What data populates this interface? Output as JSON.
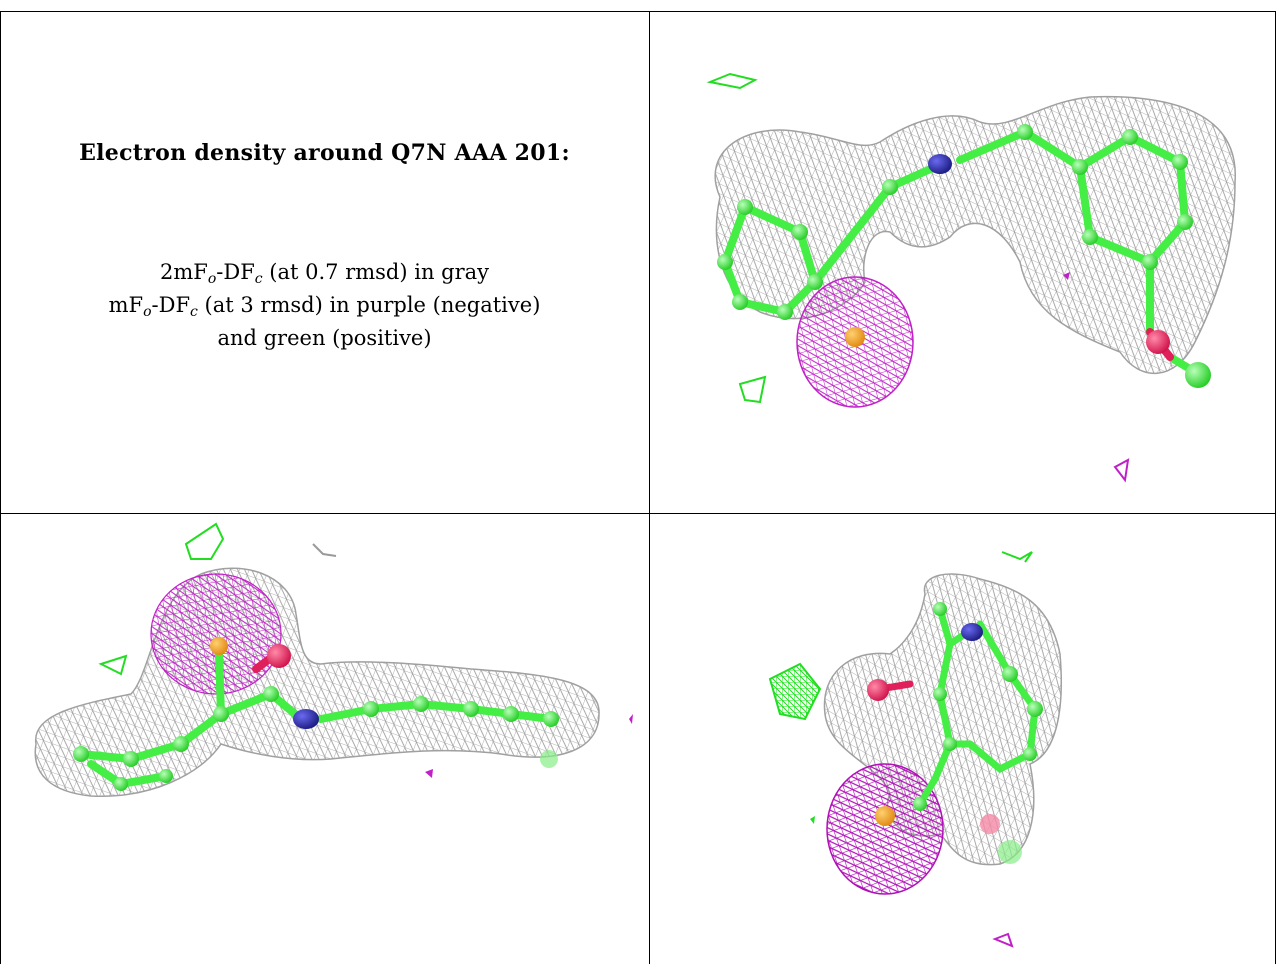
{
  "title": "Electron density around Q7N AAA 201:",
  "legend": {
    "line1_prefix": "2mF",
    "line1_sub_o": "o",
    "line1_mid": "-DF",
    "line1_sub_c": "c",
    "line1_rest": " (at 0.7 rmsd) in gray",
    "line2_prefix": "mF",
    "line2_sub_o": "o",
    "line2_mid": "-DF",
    "line2_sub_c": "c",
    "line2_rest": " (at 3 rmsd) in purple (negative)",
    "line3": "and green (positive)"
  },
  "colors": {
    "mesh_gray": "#9a9a9a",
    "mesh_purple": "#c020c8",
    "mesh_green": "#22dd22",
    "carbon": "#44ee44",
    "nitrogen": "#2a2aa0",
    "oxygen": "#e0205a",
    "metal": "#f0a020"
  },
  "panels": [
    {
      "view": "top-right",
      "content": "molecular density view 1"
    },
    {
      "view": "bottom-left",
      "content": "molecular density view 2"
    },
    {
      "view": "bottom-right",
      "content": "molecular density view 3"
    }
  ]
}
